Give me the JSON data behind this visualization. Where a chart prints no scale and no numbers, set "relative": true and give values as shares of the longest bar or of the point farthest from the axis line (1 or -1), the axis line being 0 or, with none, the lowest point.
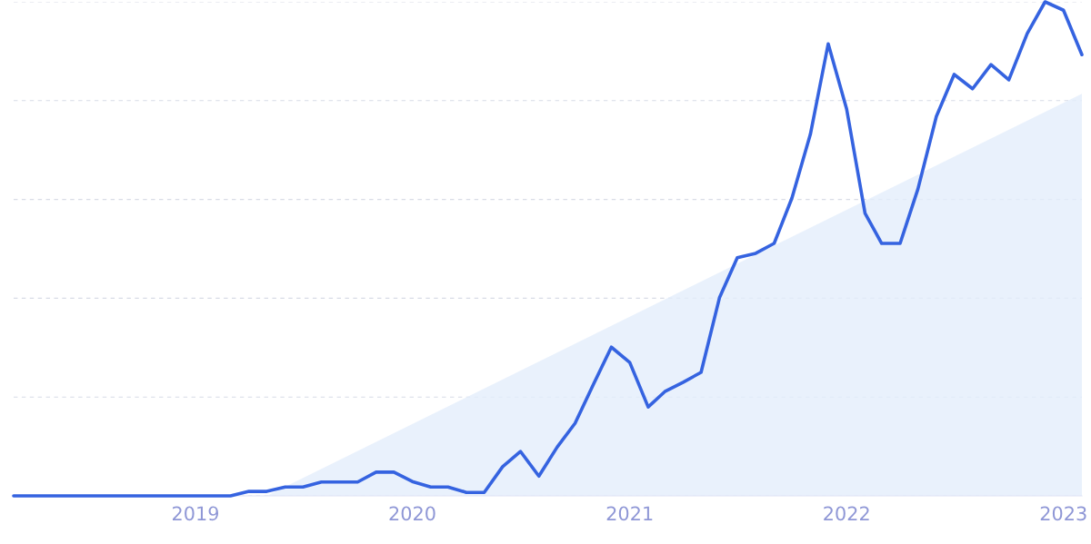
{
  "chart_data": {
    "type": "line",
    "relative": true,
    "grid": "y",
    "line_style": "solid",
    "marker": "none",
    "xlim": [
      "2018-03",
      "2023-02"
    ],
    "xticks": [
      {
        "value": "2019-01",
        "label": "2019"
      },
      {
        "value": "2020-01",
        "label": "2020"
      },
      {
        "value": "2021-01",
        "label": "2021"
      },
      {
        "value": "2022-01",
        "label": "2022"
      },
      {
        "value": "2023-01",
        "label": "2023"
      }
    ],
    "tick_labels": "x",
    "series": [
      {
        "type": "area",
        "color": "#e3edfb",
        "x": [
          "2019-05",
          "2023-02"
        ],
        "values": [
          0,
          0.814
        ]
      },
      {
        "color": "#3563e0",
        "x": [
          "2018-03",
          "2018-04",
          "2018-05",
          "2018-06",
          "2018-07",
          "2018-08",
          "2018-09",
          "2018-10",
          "2018-11",
          "2018-12",
          "2019-01",
          "2019-02",
          "2019-03",
          "2019-04",
          "2019-05",
          "2019-06",
          "2019-07",
          "2019-08",
          "2019-09",
          "2019-10",
          "2019-11",
          "2019-12",
          "2020-01",
          "2020-02",
          "2020-03",
          "2020-04",
          "2020-05",
          "2020-06",
          "2020-07",
          "2020-08",
          "2020-09",
          "2020-10",
          "2020-11",
          "2020-12",
          "2021-01",
          "2021-02",
          "2021-03",
          "2021-04",
          "2021-05",
          "2021-06",
          "2021-07",
          "2021-08",
          "2021-09",
          "2021-10",
          "2021-11",
          "2021-12",
          "2022-01",
          "2022-02",
          "2022-03",
          "2022-04",
          "2022-05",
          "2022-06",
          "2022-07",
          "2022-08",
          "2022-09",
          "2022-10",
          "2022-11",
          "2022-12",
          "2023-01",
          "2023-02"
        ],
        "values": [
          0,
          0,
          0,
          0,
          0,
          0,
          0,
          0,
          0,
          0,
          0,
          0,
          0,
          0.009,
          0.009,
          0.018,
          0.018,
          0.028,
          0.028,
          0.028,
          0.048,
          0.048,
          0.029,
          0.018,
          0.018,
          0.007,
          0.007,
          0.059,
          0.09,
          0.04,
          0.099,
          0.147,
          0.226,
          0.301,
          0.27,
          0.18,
          0.211,
          0.23,
          0.25,
          0.401,
          0.482,
          0.491,
          0.511,
          0.603,
          0.732,
          0.915,
          0.783,
          0.572,
          0.511,
          0.511,
          0.621,
          0.768,
          0.853,
          0.824,
          0.873,
          0.842,
          0.936,
          1,
          0.983,
          0.893
        ]
      }
    ]
  }
}
